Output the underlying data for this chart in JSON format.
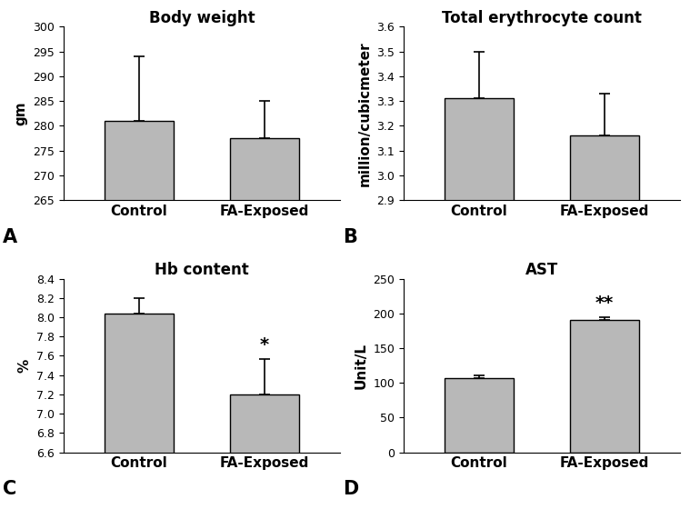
{
  "subplots": [
    {
      "title": "Body weight",
      "label": "A",
      "ylabel": "gm",
      "categories": [
        "Control",
        "FA-Exposed"
      ],
      "values": [
        281,
        277.5
      ],
      "errors": [
        13,
        7.5
      ],
      "ylim": [
        265,
        300
      ],
      "yticks": [
        265,
        270,
        275,
        280,
        285,
        290,
        295,
        300
      ],
      "significance": [
        "",
        ""
      ]
    },
    {
      "title": "Total erythrocyte count",
      "label": "B",
      "ylabel": "million/cubicmeter",
      "categories": [
        "Control",
        "FA-Exposed"
      ],
      "values": [
        3.31,
        3.16
      ],
      "errors": [
        0.19,
        0.17
      ],
      "ylim": [
        2.9,
        3.6
      ],
      "yticks": [
        2.9,
        3.0,
        3.1,
        3.2,
        3.3,
        3.4,
        3.5,
        3.6
      ],
      "significance": [
        "",
        ""
      ]
    },
    {
      "title": "Hb content",
      "label": "C",
      "ylabel": "%",
      "categories": [
        "Control",
        "FA-Exposed"
      ],
      "values": [
        8.04,
        7.2
      ],
      "errors": [
        0.16,
        0.37
      ],
      "ylim": [
        6.6,
        8.4
      ],
      "yticks": [
        6.6,
        6.8,
        7.0,
        7.2,
        7.4,
        7.6,
        7.8,
        8.0,
        8.2,
        8.4
      ],
      "significance": [
        "",
        "*"
      ]
    },
    {
      "title": "AST",
      "label": "D",
      "ylabel": "Unit/L",
      "categories": [
        "Control",
        "FA-Exposed"
      ],
      "values": [
        107,
        190
      ],
      "errors": [
        3,
        5
      ],
      "ylim": [
        0,
        250
      ],
      "yticks": [
        0,
        50,
        100,
        150,
        200,
        250
      ],
      "significance": [
        "",
        "**"
      ]
    }
  ],
  "bar_color": "#b8b8b8",
  "bar_edgecolor": "#000000",
  "bar_width": 0.55,
  "capsize": 4,
  "title_fontsize": 12,
  "label_fontsize": 11,
  "tick_fontsize": 9,
  "sig_fontsize": 14,
  "panel_label_fontsize": 15
}
